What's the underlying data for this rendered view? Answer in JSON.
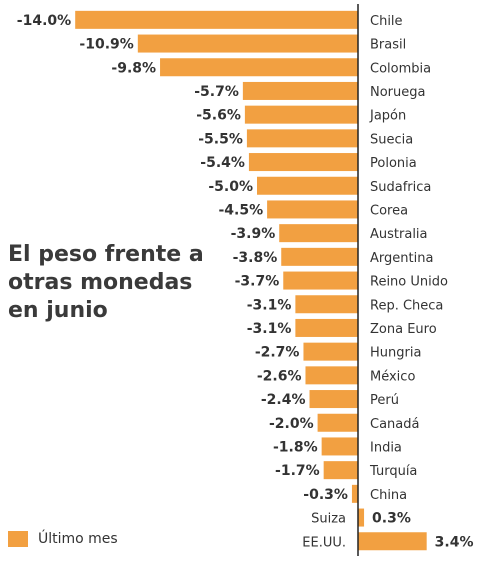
{
  "chart_data": {
    "type": "bar",
    "orientation": "horizontal",
    "title": "El peso frente a otras monedas en junio",
    "title_lines": [
      "El peso frente a",
      "otras monedas",
      "en junio"
    ],
    "categories": [
      "Chile",
      "Brasil",
      "Colombia",
      "Noruega",
      "Japón",
      "Suecia",
      "Polonia",
      "Sudafrica",
      "Corea",
      "Australia",
      "Argentina",
      "Reino Unido",
      "Rep. Checa",
      "Zona Euro",
      "Hungria",
      "México",
      "Perú",
      "Canadá",
      "India",
      "Turquía",
      "China",
      "Suiza",
      "EE.UU."
    ],
    "values": [
      -14.0,
      -10.9,
      -9.8,
      -5.7,
      -5.6,
      -5.5,
      -5.4,
      -5.0,
      -4.5,
      -3.9,
      -3.8,
      -3.7,
      -3.1,
      -3.1,
      -2.7,
      -2.6,
      -2.4,
      -2.0,
      -1.8,
      -1.7,
      -0.3,
      0.3,
      3.4
    ],
    "value_labels": [
      "-14.0%",
      "-10.9%",
      "-9.8%",
      "-5.7%",
      "-5.6%",
      "-5.5%",
      "-5.4%",
      "-5.0%",
      "-4.5%",
      "-3.9%",
      "-3.8%",
      "-3.7%",
      "-3.1%",
      "-3.1%",
      "-2.7%",
      "-2.6%",
      "-2.4%",
      "-2.0%",
      "-1.8%",
      "-1.7%",
      "-0.3%",
      "0.3%",
      "3.4%"
    ],
    "series": [
      {
        "name": "Último mes"
      }
    ],
    "legend": "bottom-left",
    "xlim": [
      -14.0,
      3.4
    ],
    "grid": false,
    "bar_color": "#f2a041",
    "axis_color": "#222222"
  }
}
